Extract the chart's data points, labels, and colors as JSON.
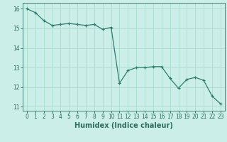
{
  "x": [
    0,
    1,
    2,
    3,
    4,
    5,
    6,
    7,
    8,
    9,
    10,
    11,
    12,
    13,
    14,
    15,
    16,
    17,
    18,
    19,
    20,
    21,
    22,
    23
  ],
  "y": [
    16.0,
    15.8,
    15.4,
    15.15,
    15.2,
    15.25,
    15.2,
    15.15,
    15.2,
    14.95,
    15.05,
    12.2,
    12.85,
    13.0,
    13.0,
    13.05,
    13.05,
    12.45,
    11.95,
    12.4,
    12.5,
    12.35,
    11.55,
    11.15
  ],
  "line_color": "#2d7d6e",
  "marker": "+",
  "marker_size": 3,
  "bg_color": "#cceee8",
  "grid_color": "#aaddcc",
  "xlabel": "Humidex (Indice chaleur)",
  "xlim": [
    -0.5,
    23.5
  ],
  "ylim": [
    10.8,
    16.3
  ],
  "yticks": [
    11,
    12,
    13,
    14,
    15,
    16
  ],
  "xticks": [
    0,
    1,
    2,
    3,
    4,
    5,
    6,
    7,
    8,
    9,
    10,
    11,
    12,
    13,
    14,
    15,
    16,
    17,
    18,
    19,
    20,
    21,
    22,
    23
  ],
  "xtick_labels": [
    "0",
    "1",
    "2",
    "3",
    "4",
    "5",
    "6",
    "7",
    "8",
    "9",
    "10",
    "11",
    "12",
    "13",
    "14",
    "15",
    "16",
    "17",
    "18",
    "19",
    "20",
    "21",
    "22",
    "23"
  ],
  "tick_color": "#2d6e60",
  "label_color": "#2d6e60",
  "font_size": 5.5,
  "label_font_size": 7
}
